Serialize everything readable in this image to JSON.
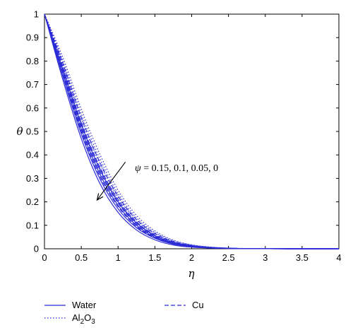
{
  "chart_data": {
    "type": "line",
    "xlabel": "η",
    "ylabel": "θ",
    "xlim": [
      0,
      4
    ],
    "ylim": [
      0,
      1
    ],
    "x_ticks": [
      "0",
      "0.5",
      "1",
      "1.5",
      "2",
      "2.5",
      "3",
      "3.5",
      "4"
    ],
    "y_ticks": [
      "0",
      "0.1",
      "0.2",
      "0.3",
      "0.4",
      "0.5",
      "0.6",
      "0.7",
      "0.8",
      "0.9",
      "1"
    ],
    "annotation": {
      "symbol": "ψ",
      "text": " = 0.15, 0.1, 0.05, 0",
      "arrow_from": [
        1.1,
        0.37
      ],
      "arrow_to": [
        0.72,
        0.21
      ]
    },
    "legend": [
      {
        "label": "Water",
        "style": "solid"
      },
      {
        "label": "Cu",
        "style": "dashed"
      },
      {
        "label": "Al",
        "sub": "2",
        "label2": "O",
        "sub2": "3",
        "style": "dotted"
      }
    ],
    "colors": {
      "lines": "#2b2bd6",
      "axes": "#000000"
    },
    "x": [
      0,
      0.25,
      0.5,
      0.75,
      1.0,
      1.25,
      1.5,
      1.75,
      2.0,
      2.25,
      2.5,
      2.75,
      3.0,
      3.5,
      4.0
    ],
    "series": [
      {
        "group": "Water",
        "style": "solid",
        "values": [
          1,
          0.72,
          0.47,
          0.28,
          0.155,
          0.08,
          0.038,
          0.016,
          0.007,
          0.003,
          0.001,
          0.0005,
          0.0002,
          0,
          0
        ]
      },
      {
        "group": "Water",
        "style": "solid",
        "values": [
          1,
          0.735,
          0.49,
          0.3,
          0.17,
          0.09,
          0.045,
          0.02,
          0.009,
          0.004,
          0.0015,
          0.0006,
          0.0002,
          0,
          0
        ]
      },
      {
        "group": "Water",
        "style": "solid",
        "values": [
          1,
          0.75,
          0.51,
          0.32,
          0.185,
          0.1,
          0.05,
          0.023,
          0.01,
          0.0045,
          0.0018,
          0.0007,
          0.0003,
          0,
          0
        ]
      },
      {
        "group": "Water",
        "style": "solid",
        "values": [
          1,
          0.765,
          0.53,
          0.34,
          0.2,
          0.11,
          0.056,
          0.026,
          0.012,
          0.005,
          0.002,
          0.0008,
          0.0003,
          0,
          0
        ]
      },
      {
        "group": "Cu",
        "style": "dashed",
        "values": [
          1,
          0.745,
          0.5,
          0.31,
          0.18,
          0.095,
          0.047,
          0.022,
          0.01,
          0.004,
          0.0016,
          0.0006,
          0.0002,
          0,
          0
        ]
      },
      {
        "group": "Cu",
        "style": "dashed",
        "values": [
          1,
          0.76,
          0.52,
          0.33,
          0.195,
          0.105,
          0.053,
          0.025,
          0.011,
          0.005,
          0.002,
          0.0007,
          0.0003,
          0,
          0
        ]
      },
      {
        "group": "Cu",
        "style": "dashed",
        "values": [
          1,
          0.775,
          0.54,
          0.35,
          0.21,
          0.115,
          0.059,
          0.028,
          0.013,
          0.0055,
          0.0022,
          0.0008,
          0.0003,
          0,
          0
        ]
      },
      {
        "group": "Cu",
        "style": "dashed",
        "values": [
          1,
          0.79,
          0.56,
          0.37,
          0.225,
          0.125,
          0.065,
          0.031,
          0.014,
          0.006,
          0.0025,
          0.0009,
          0.0003,
          0,
          0
        ]
      },
      {
        "group": "Al2O3",
        "style": "dotted",
        "values": [
          1,
          0.77,
          0.535,
          0.345,
          0.205,
          0.112,
          0.058,
          0.027,
          0.012,
          0.005,
          0.002,
          0.0008,
          0.0003,
          0,
          0
        ]
      },
      {
        "group": "Al2O3",
        "style": "dotted",
        "values": [
          1,
          0.785,
          0.555,
          0.365,
          0.22,
          0.122,
          0.064,
          0.03,
          0.014,
          0.006,
          0.0024,
          0.0009,
          0.0003,
          0,
          0
        ]
      },
      {
        "group": "Al2O3",
        "style": "dotted",
        "values": [
          1,
          0.8,
          0.575,
          0.385,
          0.235,
          0.132,
          0.07,
          0.034,
          0.016,
          0.007,
          0.0028,
          0.001,
          0.0004,
          0,
          0
        ]
      },
      {
        "group": "Al2O3",
        "style": "dotted",
        "values": [
          1,
          0.815,
          0.595,
          0.405,
          0.25,
          0.142,
          0.076,
          0.037,
          0.017,
          0.0075,
          0.003,
          0.0011,
          0.0004,
          0,
          0
        ]
      }
    ]
  }
}
